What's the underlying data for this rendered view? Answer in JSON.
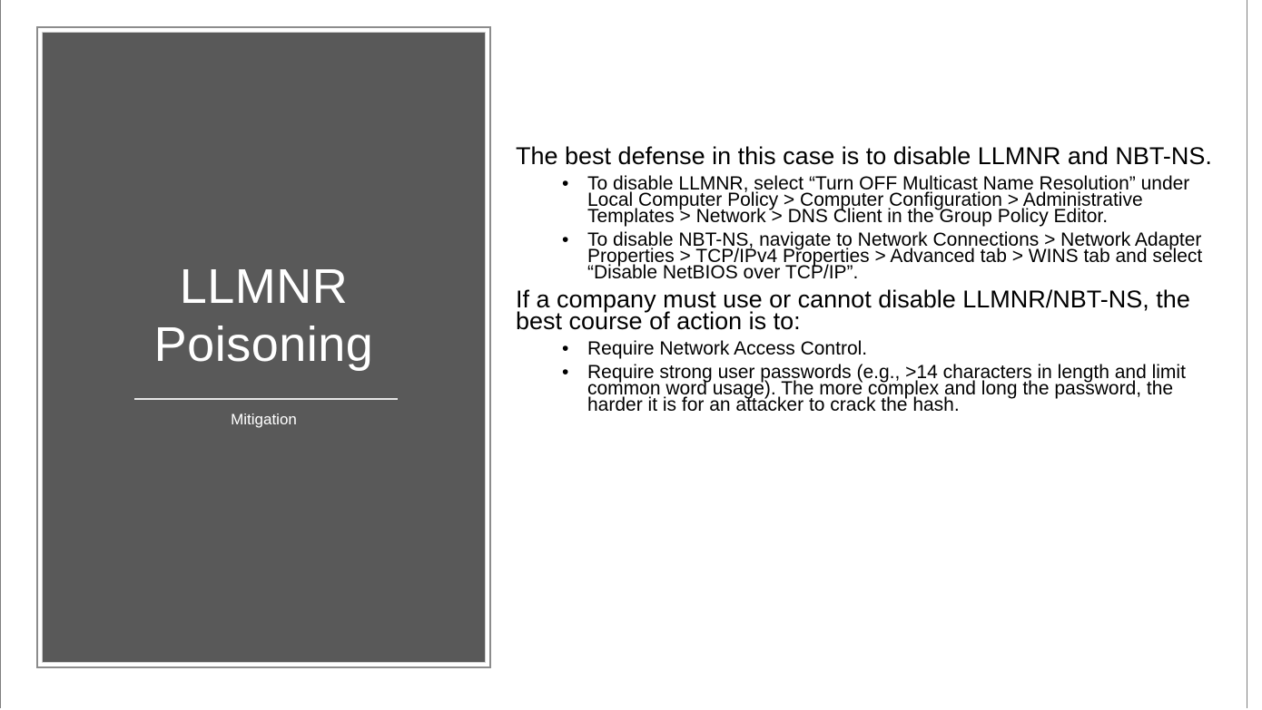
{
  "slide": {
    "title_lines": [
      "LLMNR",
      "Poisoning"
    ],
    "subtitle": "Mitigation",
    "colors": {
      "panel_background": "#595959",
      "title_text": "#ffffff",
      "body_text": "#000000"
    }
  },
  "content": {
    "para1": "The best defense in this case is to disable LLMNR and NBT-NS.",
    "para1_bullets": [
      "To disable LLMNR, select “Turn OFF Multicast Name Resolution” under Local Computer Policy > Computer Configuration > Administrative Templates > Network > DNS Client in the Group Policy Editor.",
      "To disable NBT-NS, navigate to Network Connections > Network Adapter Properties > TCP/IPv4 Properties > Advanced tab > WINS tab and select “Disable NetBIOS over TCP/IP”."
    ],
    "para2": "If a company must use or cannot disable LLMNR/NBT-NS, the best course of action is to:",
    "para2_bullets": [
      "Require Network Access Control.",
      "Require strong user passwords (e.g., >14 characters in length and limit common word usage).  The more complex and long the password, the harder it is for an attacker to crack the hash."
    ],
    "bullet_symbol": "•"
  }
}
